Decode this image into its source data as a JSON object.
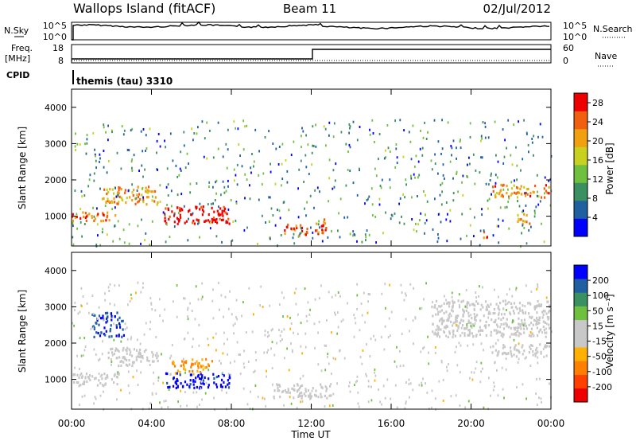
{
  "header": {
    "station": "Wallops Island (fitACF)",
    "beam": "Beam 11",
    "date": "02/Jul/2012"
  },
  "params": {
    "nsky_label": "N.Sky",
    "nsearch_label": "N.Search",
    "nsky_ticks": [
      "10^5",
      "10^0"
    ],
    "nsearch_ticks": [
      "10^5",
      "10^0"
    ],
    "freq_label": "Freq.",
    "freq_unit": "[MHz]",
    "freq_ticks": [
      "18",
      "8"
    ],
    "nave_label": "Nave",
    "nave_ticks": [
      "60",
      "0"
    ],
    "cpid_label": "CPID",
    "cpid_value": "themis (tau) 3310"
  },
  "chart_data": [
    {
      "type": "heatmap",
      "quantity": "Power",
      "ylabel": "Slant Range [km]",
      "xlabel": "",
      "x_range_hours": [
        0,
        24
      ],
      "ylim": [
        180,
        4500
      ],
      "yticks": [
        1000,
        2000,
        3000,
        4000
      ],
      "colorbar": {
        "label": "Power [dB]",
        "ticks": [
          4,
          8,
          12,
          16,
          20,
          24,
          28
        ],
        "range": [
          0,
          30
        ]
      },
      "features": [
        {
          "t": [
            0.0,
            2.2
          ],
          "r": [
            900,
            1150
          ],
          "level": 24
        },
        {
          "t": [
            1.5,
            4.3
          ],
          "r": [
            1350,
            1850
          ],
          "level": 20
        },
        {
          "t": [
            4.6,
            7.9
          ],
          "r": [
            820,
            1300
          ],
          "level": 30
        },
        {
          "t": [
            10.5,
            11.8
          ],
          "r": [
            500,
            800
          ],
          "level": 24
        },
        {
          "t": [
            12.1,
            12.8
          ],
          "r": [
            520,
            950
          ],
          "level": 26
        },
        {
          "t": [
            20.6,
            21.0
          ],
          "r": [
            400,
            600
          ],
          "level": 26
        },
        {
          "t": [
            21.0,
            23.9
          ],
          "r": [
            1550,
            1900
          ],
          "level": 22
        },
        {
          "t": [
            22.2,
            22.9
          ],
          "r": [
            780,
            1100
          ],
          "level": 22
        }
      ]
    },
    {
      "type": "heatmap",
      "quantity": "Velocity",
      "ylabel": "Slant Range [km]",
      "xlabel": "Time UT",
      "x_range_hours": [
        0,
        24
      ],
      "x_tick_labels": [
        "00:00",
        "04:00",
        "08:00",
        "12:00",
        "16:00",
        "20:00",
        "00:00"
      ],
      "ylim": [
        180,
        4500
      ],
      "yticks": [
        1000,
        2000,
        3000,
        4000
      ],
      "colorbar": {
        "label": "Velocity [m s⁻¹]",
        "ticks": [
          200,
          100,
          50,
          15,
          -15,
          -50,
          -100,
          -200
        ],
        "range": [
          -250,
          250
        ]
      },
      "features": [
        {
          "t": [
            0.0,
            2.5
          ],
          "r": [
            850,
            1200
          ],
          "level": 0
        },
        {
          "t": [
            1.8,
            4.3
          ],
          "r": [
            1400,
            1900
          ],
          "level": 0
        },
        {
          "t": [
            1.0,
            2.6
          ],
          "r": [
            2200,
            2900
          ],
          "level": 200
        },
        {
          "t": [
            4.6,
            7.9
          ],
          "r": [
            780,
            1200
          ],
          "level": 220
        },
        {
          "t": [
            5.0,
            7.0
          ],
          "r": [
            1200,
            1600
          ],
          "level": -100
        },
        {
          "t": [
            10.0,
            13.0
          ],
          "r": [
            500,
            900
          ],
          "level": 0
        },
        {
          "t": [
            21.0,
            23.9
          ],
          "r": [
            1650,
            2000
          ],
          "level": 0
        },
        {
          "t": [
            18.0,
            23.9
          ],
          "r": [
            2200,
            3200
          ],
          "level": 0
        }
      ]
    }
  ],
  "colors": {
    "power_scale": [
      "#0000ff",
      "#2060a0",
      "#3a9060",
      "#70c040",
      "#c8d020",
      "#f0a010",
      "#f06010",
      "#ee0000"
    ],
    "velocity_scale": [
      "#ee0000",
      "#ff4000",
      "#ff8000",
      "#ffb000",
      "#c8c8c8",
      "#c8c8c8",
      "#70c040",
      "#3a9060",
      "#2060a0",
      "#0000ff"
    ]
  }
}
